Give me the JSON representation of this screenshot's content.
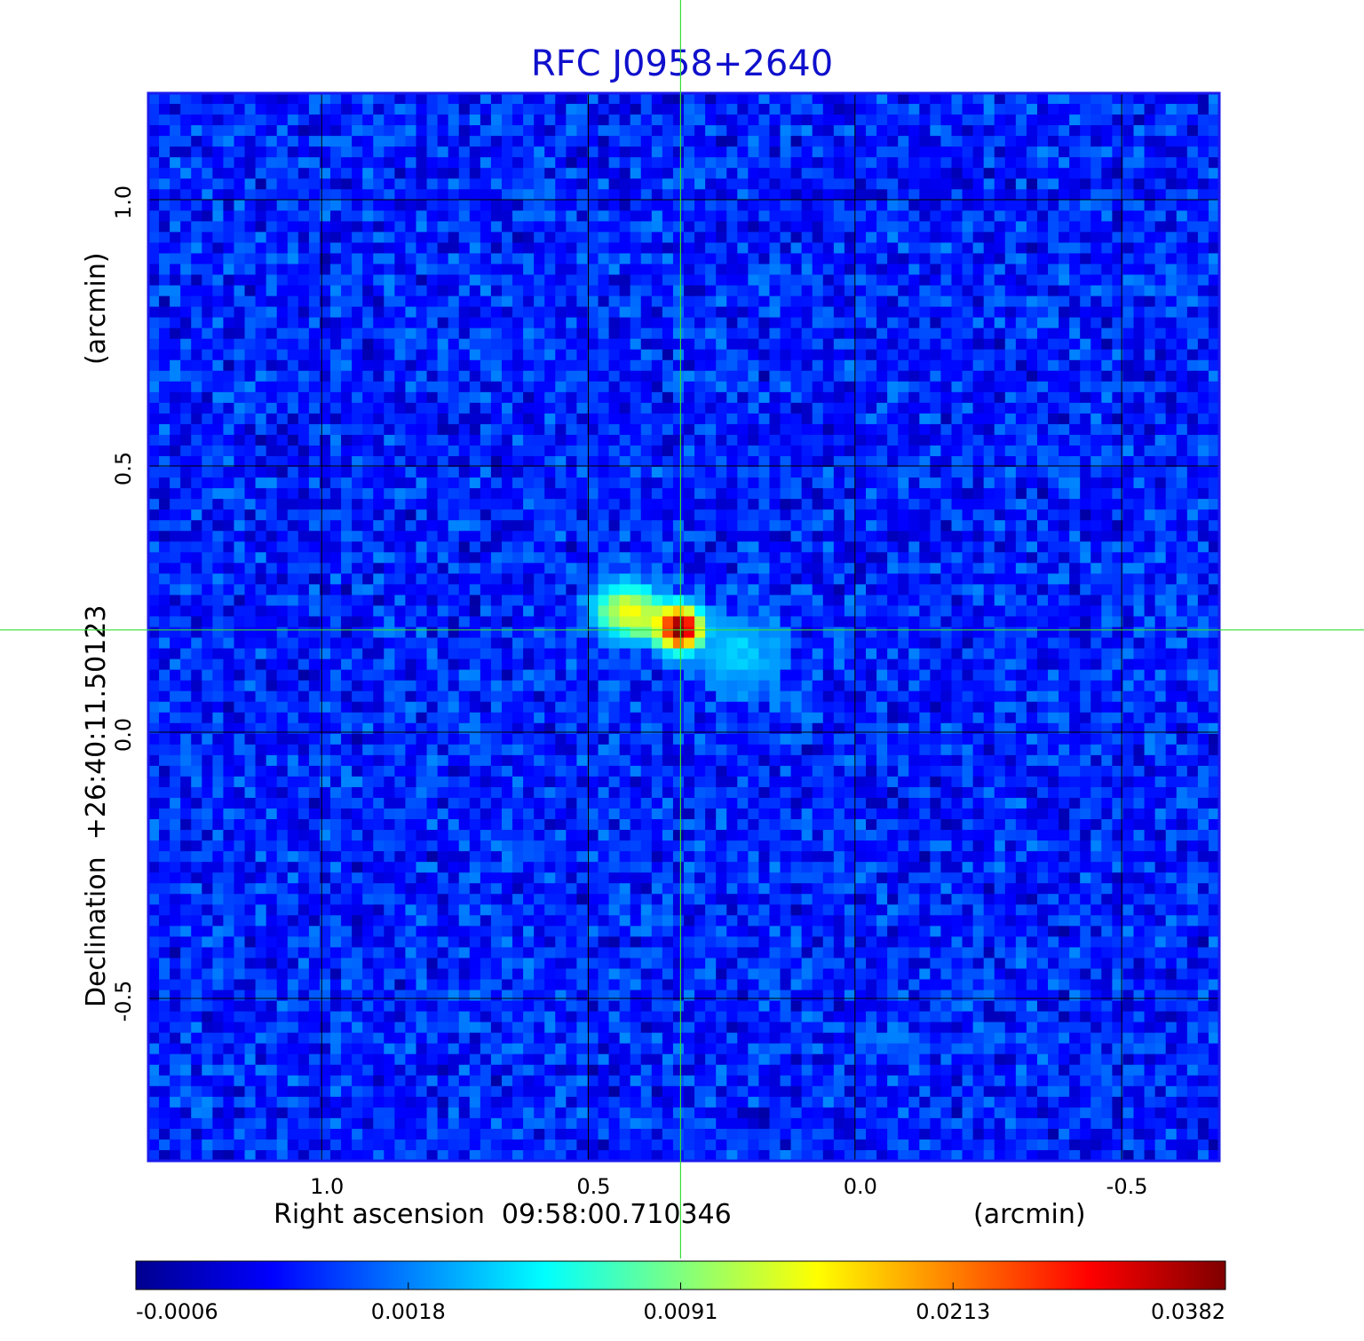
{
  "chart_data": {
    "type": "heatmap",
    "title": "RFC J0958+2640",
    "xlabel": "Right ascension  09:58:00.710346",
    "xunit": "(arcmin)",
    "ylabel": "Declination  +26:40:11.50123",
    "yunit": "(arcmin)",
    "x_ticks": [
      "1.0",
      "0.5",
      "0.0",
      "-0.5"
    ],
    "y_ticks": [
      "1.0",
      "0.5",
      "0.0",
      "-0.5"
    ],
    "xlim": [
      1.325,
      -0.683
    ],
    "ylim": [
      -0.805,
      1.2
    ],
    "x_gridlines": [
      1.0,
      0.5,
      0.0,
      -0.5
    ],
    "y_gridlines": [
      1.0,
      0.5,
      0.0,
      -0.5
    ],
    "crosshair": {
      "x": 0.327,
      "y": 0.192,
      "color": "#33dd33"
    },
    "grid": true,
    "colormap": "jet",
    "colorbar": {
      "labels": [
        "-0.0006",
        "0.0018",
        "0.0091",
        "0.0213",
        "0.0382"
      ],
      "min": -0.0006,
      "max": 0.0382
    },
    "background_level": 0.0009,
    "features": [
      {
        "x": 0.327,
        "y": 0.195,
        "peak": 0.0382,
        "sigma": 0.024
      },
      {
        "x": 0.44,
        "y": 0.23,
        "peak": 0.0105,
        "sigma": 0.032
      },
      {
        "x": 0.39,
        "y": 0.215,
        "peak": 0.0085,
        "sigma": 0.03
      },
      {
        "x": 0.21,
        "y": 0.145,
        "peak": 0.003,
        "sigma": 0.05
      }
    ]
  }
}
